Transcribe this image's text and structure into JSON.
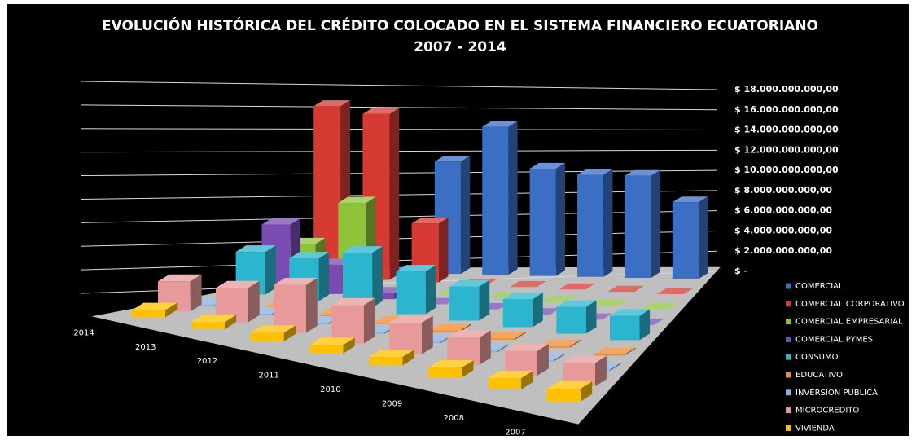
{
  "chart_data": {
    "type": "bar3d",
    "title": "EVOLUCIÓN HISTÓRICA DEL CRÉDITO COLOCADO EN EL SISTEMA FINANCIERO ECUATORIANO",
    "subtitle": "2007 - 2014",
    "categories": [
      "2014",
      "2013",
      "2012",
      "2011",
      "2010",
      "2009",
      "2008",
      "2007"
    ],
    "series": [
      {
        "name": "COMERCIAL",
        "color": "#3a6fc4",
        "values": [
          0,
          0,
          11000000000,
          14500000000,
          10500000000,
          10000000000,
          10000000000,
          7500000000
        ]
      },
      {
        "name": "COMERCIAL CORPORATIVO",
        "color": "#d63a32",
        "values": [
          16000000000,
          15500000000,
          5500000000,
          0,
          0,
          0,
          0,
          0
        ]
      },
      {
        "name": "COMERCIAL EMPRESARIAL",
        "color": "#8fc43a",
        "values": [
          3500000000,
          7500000000,
          200000000,
          0,
          0,
          0,
          0,
          0
        ]
      },
      {
        "name": "COMERCIAL PYMES",
        "color": "#7a4bb0",
        "values": [
          5500000000,
          2500000000,
          500000000,
          0,
          0,
          0,
          0,
          0
        ]
      },
      {
        "name": "CONSUMO",
        "color": "#2bb5cf",
        "values": [
          3500000000,
          3500000000,
          4500000000,
          3500000000,
          2800000000,
          2300000000,
          2200000000,
          2000000000
        ]
      },
      {
        "name": "EDUCATIVO",
        "color": "#f08a2a",
        "values": [
          100000000,
          100000000,
          100000000,
          100000000,
          100000000,
          100000000,
          100000000,
          100000000
        ]
      },
      {
        "name": "INVERSION PUBLICA",
        "color": "#8aaee0",
        "values": [
          100000000,
          100000000,
          100000000,
          100000000,
          100000000,
          100000000,
          100000000,
          100000000
        ]
      },
      {
        "name": "MICROCREDITO",
        "color": "#e89a9a",
        "values": [
          2200000000,
          2500000000,
          3500000000,
          2800000000,
          2300000000,
          2000000000,
          1800000000,
          1700000000
        ]
      },
      {
        "name": "VIVIENDA",
        "color": "#ffc000",
        "values": [
          500000000,
          500000000,
          600000000,
          600000000,
          600000000,
          700000000,
          800000000,
          900000000
        ]
      }
    ],
    "ylim": [
      0,
      18000000000
    ],
    "yticks": [
      {
        "value": 0,
        "label": "$ -"
      },
      {
        "value": 2000000000,
        "label": "$ 2.000.000.000,00"
      },
      {
        "value": 4000000000,
        "label": "$ 4.000.000.000,00"
      },
      {
        "value": 6000000000,
        "label": "$ 6.000.000.000,00"
      },
      {
        "value": 8000000000,
        "label": "$ 8.000.000.000,00"
      },
      {
        "value": 10000000000,
        "label": "$ 10.000.000.000,00"
      },
      {
        "value": 12000000000,
        "label": "$ 12.000.000.000,00"
      },
      {
        "value": 14000000000,
        "label": "$ 14.000.000.000,00"
      },
      {
        "value": 16000000000,
        "label": "$ 16.000.000.000,00"
      },
      {
        "value": 18000000000,
        "label": "$ 18.000.000.000,00"
      }
    ],
    "grid": true
  }
}
